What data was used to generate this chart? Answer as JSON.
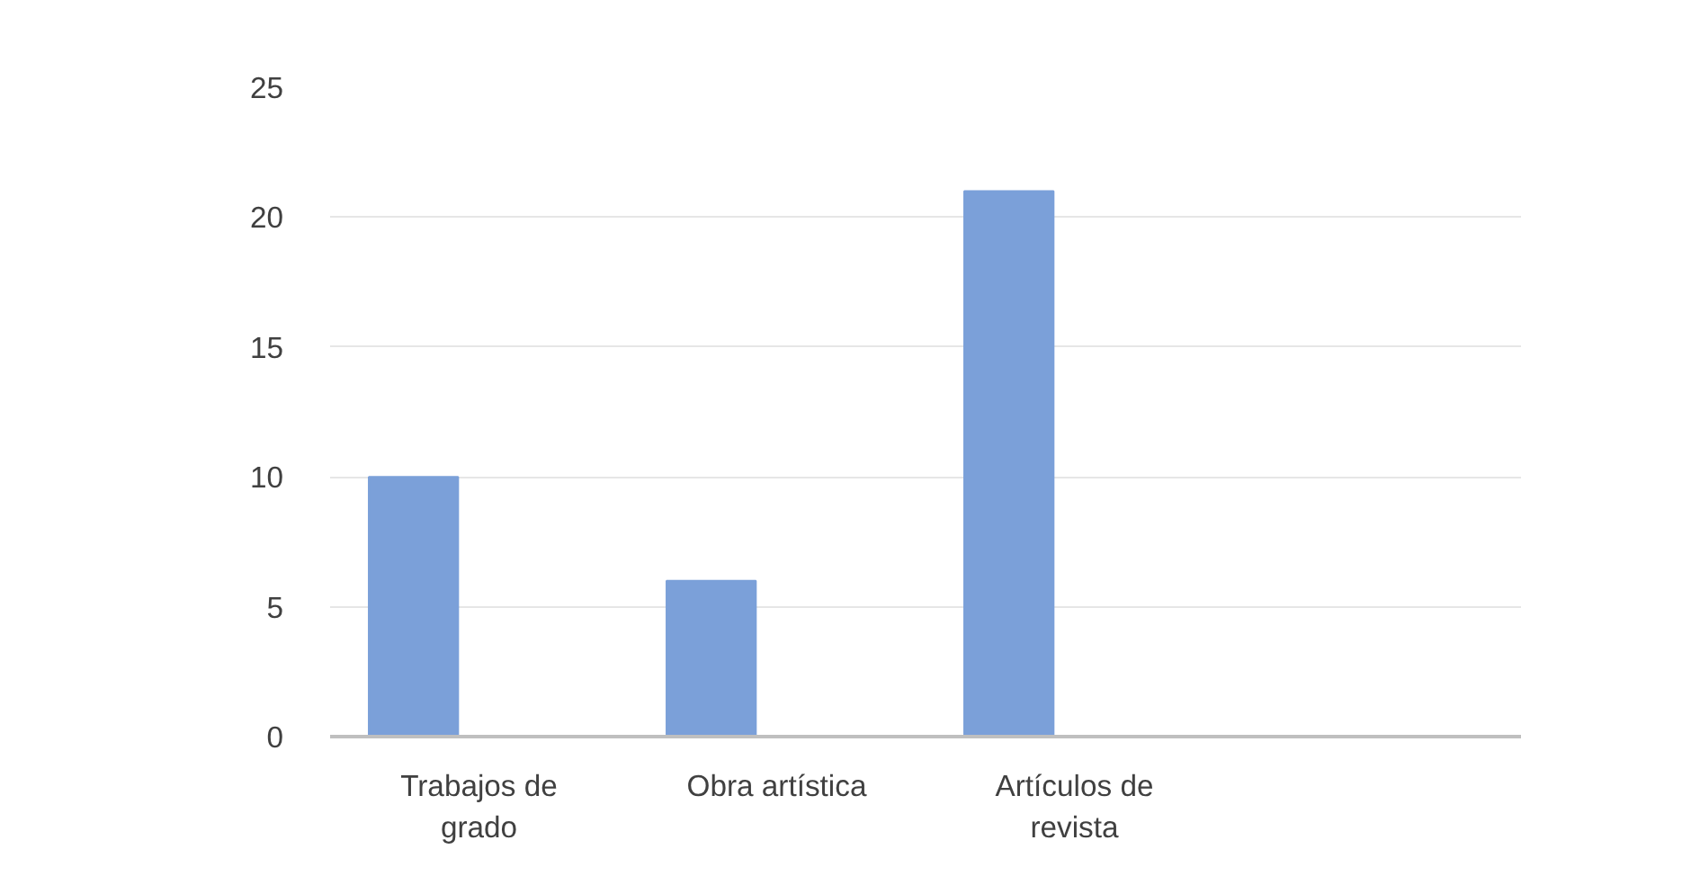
{
  "chart_data": {
    "type": "bar",
    "categories": [
      "Trabajos de\ngrado",
      "Obra artística",
      "Artículos de\nrevista",
      null
    ],
    "values": [
      10,
      6,
      21,
      null
    ],
    "color": "#7ba0d9",
    "ylim": [
      0,
      25
    ],
    "yticks": [
      0,
      5,
      10,
      15,
      20,
      25
    ],
    "grid": "y"
  }
}
